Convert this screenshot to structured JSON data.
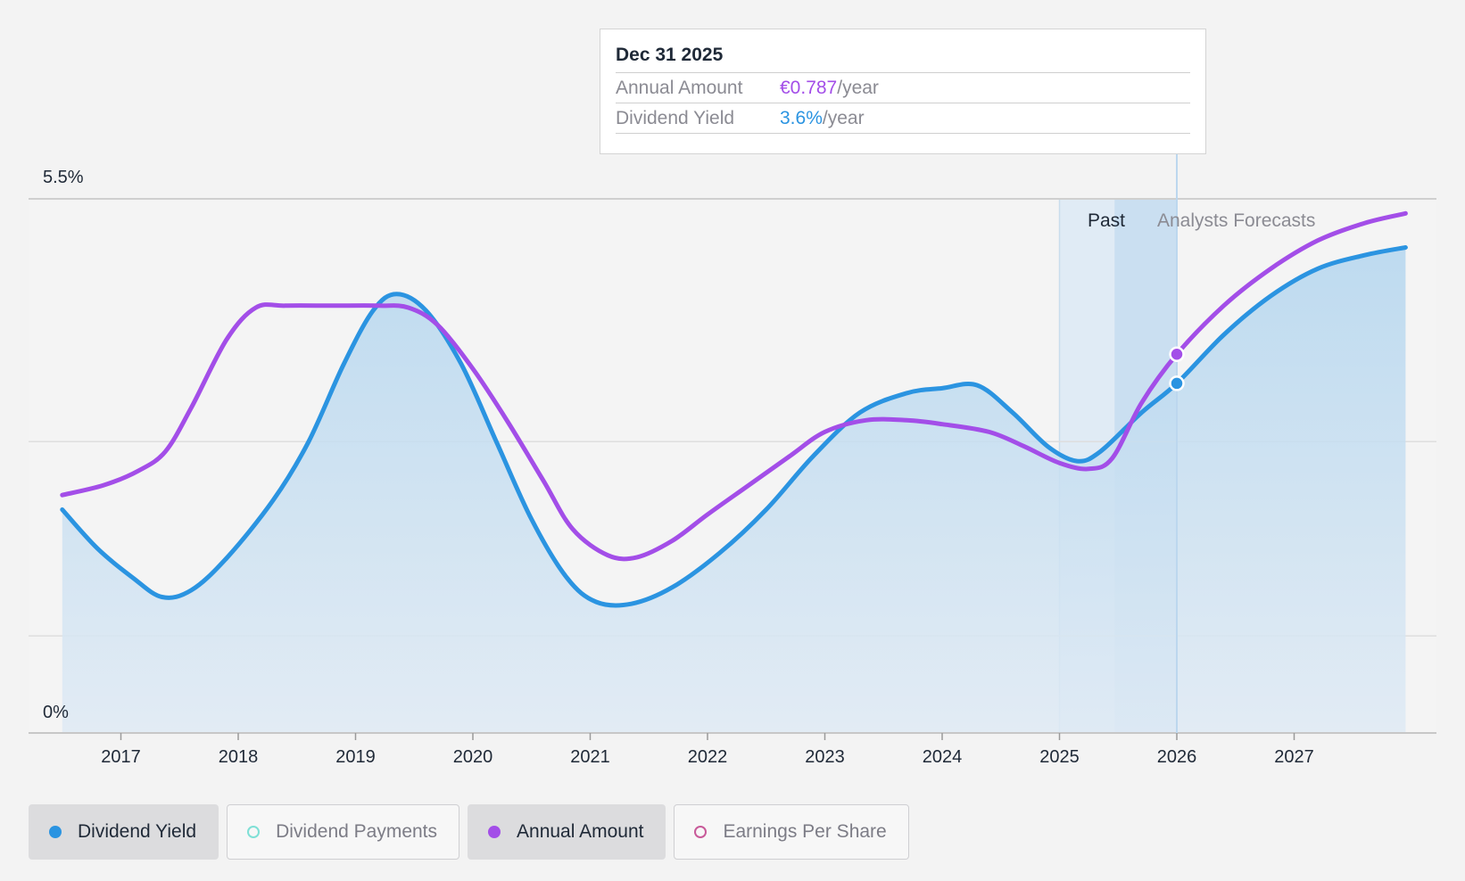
{
  "chart_data": {
    "type": "line",
    "y_axis": {
      "labels": [
        "5.5%",
        "0%"
      ],
      "min": 0,
      "max": 5.5,
      "unit": "%"
    },
    "x_axis": {
      "range": [
        2016.0,
        2028.0
      ],
      "ticks": [
        "2017",
        "2018",
        "2019",
        "2020",
        "2021",
        "2022",
        "2023",
        "2024",
        "2025",
        "2026",
        "2027"
      ]
    },
    "regions": {
      "past_label": "Past",
      "forecast_label": "Analysts Forecasts"
    },
    "series": [
      {
        "name": "Dividend Yield",
        "color": "#2b94e1",
        "filled": true,
        "points": [
          [
            2016.5,
            2.3
          ],
          [
            2016.8,
            1.9
          ],
          [
            2017.1,
            1.6
          ],
          [
            2017.35,
            1.4
          ],
          [
            2017.6,
            1.47
          ],
          [
            2017.9,
            1.8
          ],
          [
            2018.3,
            2.4
          ],
          [
            2018.6,
            3.0
          ],
          [
            2018.9,
            3.8
          ],
          [
            2019.15,
            4.35
          ],
          [
            2019.35,
            4.52
          ],
          [
            2019.6,
            4.35
          ],
          [
            2019.9,
            3.8
          ],
          [
            2020.2,
            3.0
          ],
          [
            2020.5,
            2.2
          ],
          [
            2020.8,
            1.6
          ],
          [
            2021.05,
            1.35
          ],
          [
            2021.35,
            1.33
          ],
          [
            2021.7,
            1.5
          ],
          [
            2022.1,
            1.85
          ],
          [
            2022.5,
            2.3
          ],
          [
            2022.9,
            2.85
          ],
          [
            2023.3,
            3.3
          ],
          [
            2023.7,
            3.5
          ],
          [
            2024.0,
            3.55
          ],
          [
            2024.3,
            3.58
          ],
          [
            2024.6,
            3.3
          ],
          [
            2024.9,
            2.95
          ],
          [
            2025.15,
            2.8
          ],
          [
            2025.35,
            2.9
          ],
          [
            2025.7,
            3.3
          ],
          [
            2026.0,
            3.6
          ],
          [
            2026.4,
            4.1
          ],
          [
            2026.8,
            4.5
          ],
          [
            2027.2,
            4.78
          ],
          [
            2027.6,
            4.92
          ],
          [
            2027.95,
            5.0
          ]
        ]
      },
      {
        "name": "Annual Amount",
        "color": "#a34ee8",
        "filled": false,
        "points": [
          [
            2016.5,
            2.45
          ],
          [
            2016.85,
            2.55
          ],
          [
            2017.15,
            2.7
          ],
          [
            2017.38,
            2.9
          ],
          [
            2017.6,
            3.35
          ],
          [
            2017.9,
            4.05
          ],
          [
            2018.15,
            4.38
          ],
          [
            2018.4,
            4.4
          ],
          [
            2018.8,
            4.4
          ],
          [
            2019.2,
            4.4
          ],
          [
            2019.45,
            4.38
          ],
          [
            2019.7,
            4.2
          ],
          [
            2020.0,
            3.75
          ],
          [
            2020.3,
            3.2
          ],
          [
            2020.6,
            2.6
          ],
          [
            2020.85,
            2.1
          ],
          [
            2021.15,
            1.83
          ],
          [
            2021.4,
            1.81
          ],
          [
            2021.7,
            1.98
          ],
          [
            2022.0,
            2.25
          ],
          [
            2022.35,
            2.55
          ],
          [
            2022.7,
            2.85
          ],
          [
            2023.0,
            3.1
          ],
          [
            2023.35,
            3.22
          ],
          [
            2023.7,
            3.22
          ],
          [
            2024.0,
            3.18
          ],
          [
            2024.4,
            3.1
          ],
          [
            2024.7,
            2.95
          ],
          [
            2025.0,
            2.78
          ],
          [
            2025.25,
            2.72
          ],
          [
            2025.45,
            2.83
          ],
          [
            2025.7,
            3.4
          ],
          [
            2026.0,
            3.9
          ],
          [
            2026.4,
            4.4
          ],
          [
            2026.8,
            4.78
          ],
          [
            2027.2,
            5.07
          ],
          [
            2027.6,
            5.25
          ],
          [
            2027.95,
            5.35
          ]
        ]
      }
    ],
    "highlight": {
      "x": 2026.0,
      "dividend_yield": 3.6,
      "annual_amount": 3.9
    },
    "grid": true
  },
  "tooltip": {
    "date": "Dec 31 2025",
    "rows": [
      {
        "label": "Annual Amount",
        "value": "€0.787",
        "unit": "/year",
        "color": "#a34ee8"
      },
      {
        "label": "Dividend Yield",
        "value": "3.6%",
        "unit": "/year",
        "color": "#2b94e1"
      }
    ]
  },
  "legend": [
    {
      "label": "Dividend Yield",
      "color": "#2b94e1",
      "active": true,
      "filled": true
    },
    {
      "label": "Dividend Payments",
      "color": "#7fe0d6",
      "active": false,
      "filled": false
    },
    {
      "label": "Annual Amount",
      "color": "#a34ee8",
      "active": true,
      "filled": true
    },
    {
      "label": "Earnings Per Share",
      "color": "#c85a99",
      "active": false,
      "filled": false
    }
  ]
}
